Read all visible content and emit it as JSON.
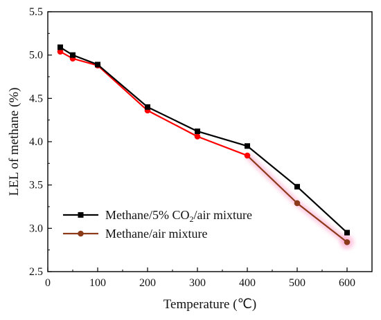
{
  "chart_data": {
    "type": "line",
    "xlabel": "Temperature (℃)",
    "ylabel": "LEL of methane (%)",
    "xlim": [
      0,
      650
    ],
    "ylim": [
      2.5,
      5.5
    ],
    "xticks": [
      0,
      100,
      200,
      300,
      400,
      500,
      600
    ],
    "yticks": [
      2.5,
      3.0,
      3.5,
      4.0,
      4.5,
      5.0,
      5.5
    ],
    "xtick_labels": [
      "0",
      "100",
      "200",
      "300",
      "400",
      "500",
      "600"
    ],
    "ytick_labels": [
      "2.5",
      "3.0",
      "3.5",
      "4.0",
      "4.5",
      "5.0",
      "5.5"
    ],
    "grid": false,
    "legend_position": "bottom-left",
    "series": [
      {
        "name": "Methane/5% CO2/air mixture",
        "legend_parts": [
          "Methane/5% CO",
          "2",
          "/air mixture"
        ],
        "marker": "square",
        "color": "#000000",
        "x": [
          25,
          50,
          100,
          200,
          300,
          400,
          500,
          600
        ],
        "y": [
          5.09,
          5.0,
          4.89,
          4.4,
          4.12,
          3.95,
          3.48,
          2.95
        ]
      },
      {
        "name": "Methane/air mixture",
        "legend_parts": [
          "Methane/air mixture"
        ],
        "marker": "circle",
        "color": "#ff0000",
        "color_late": "#8b3a1a",
        "x": [
          25,
          50,
          100,
          200,
          300,
          400,
          500,
          600
        ],
        "y": [
          5.04,
          4.96,
          4.88,
          4.36,
          4.06,
          3.84,
          3.29,
          2.84
        ]
      }
    ]
  }
}
